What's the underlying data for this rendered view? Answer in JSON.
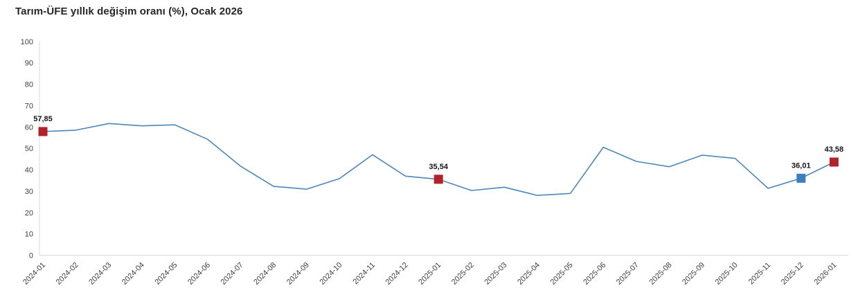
{
  "chart_data": {
    "type": "line",
    "title": "Tarım-ÜFE yıllık değişim oranı (%), Ocak 2026",
    "xlabel": "",
    "ylabel": "",
    "ylim": [
      0,
      100
    ],
    "ytick_step": 10,
    "grid": false,
    "legend": "none",
    "categories": [
      "2024-01",
      "2024-02",
      "2024-03",
      "2024-04",
      "2024-05",
      "2024-06",
      "2024-07",
      "2024-08",
      "2024-09",
      "2024-10",
      "2024-11",
      "2024-12",
      "2025-01",
      "2025-02",
      "2025-03",
      "2025-04",
      "2025-05",
      "2025-06",
      "2025-07",
      "2025-08",
      "2025-09",
      "2025-10",
      "2025-11",
      "2025-12",
      "2026-01"
    ],
    "values": [
      57.85,
      58.5,
      61.6,
      60.5,
      61.0,
      54.2,
      41.6,
      32.2,
      30.9,
      35.9,
      47.0,
      37.0,
      35.54,
      30.3,
      31.8,
      28.0,
      28.9,
      50.5,
      43.9,
      41.4,
      46.8,
      45.3,
      31.3,
      36.01,
      43.58
    ],
    "labeled_points": [
      {
        "index": 0,
        "label": "57,85",
        "marker_color": "#b12329"
      },
      {
        "index": 12,
        "label": "35,54",
        "marker_color": "#b12329"
      },
      {
        "index": 23,
        "label": "36,01",
        "marker_color": "#3c7ebf"
      },
      {
        "index": 24,
        "label": "43,58",
        "marker_color": "#b12329"
      }
    ],
    "colors": {
      "line": "#4b87ba",
      "axis": "#d9d9d9",
      "tick_text": "#404040",
      "data_label_text": "#141414",
      "background": "#ffffff"
    }
  }
}
